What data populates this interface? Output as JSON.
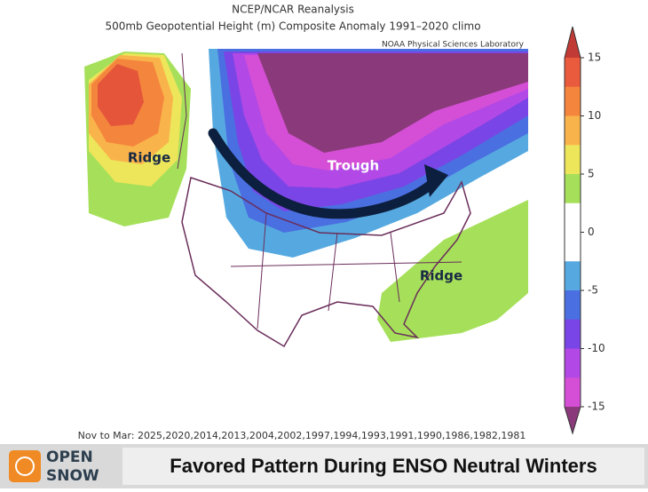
{
  "header": {
    "title": "NCEP/NCAR Reanalysis",
    "subtitle": "500mb Geopotential Height (m) Composite Anomaly 1991–2020 climo",
    "source": "NOAA Physical Sciences Laboratory"
  },
  "map": {
    "labels": [
      "Ridge",
      "Trough",
      "Ridge"
    ]
  },
  "colorbar": {
    "lim": [
      -15,
      15
    ],
    "ticks": [
      15,
      10,
      5,
      0,
      -5,
      -10,
      -15
    ],
    "colors": [
      "#ea5b3d",
      "#f4853d",
      "#f9b34b",
      "#ede55a",
      "#a6e05a",
      "#ffffff",
      "#ffffff",
      "#56a9e0",
      "#4a6fe0",
      "#7a45e6",
      "#b248e6",
      "#d44fd6"
    ],
    "over_color": "#c23a35",
    "under_color": "#8a3a7a"
  },
  "footer": {
    "years": "Nov to Mar: 2025,2020,2014,2013,2004,2002,1997,1994,1993,1991,1990,1986,1982,1981"
  },
  "banner": {
    "logo": [
      "OPEN",
      "SNOW"
    ],
    "caption": "Favored Pattern During ENSO Neutral Winters"
  }
}
